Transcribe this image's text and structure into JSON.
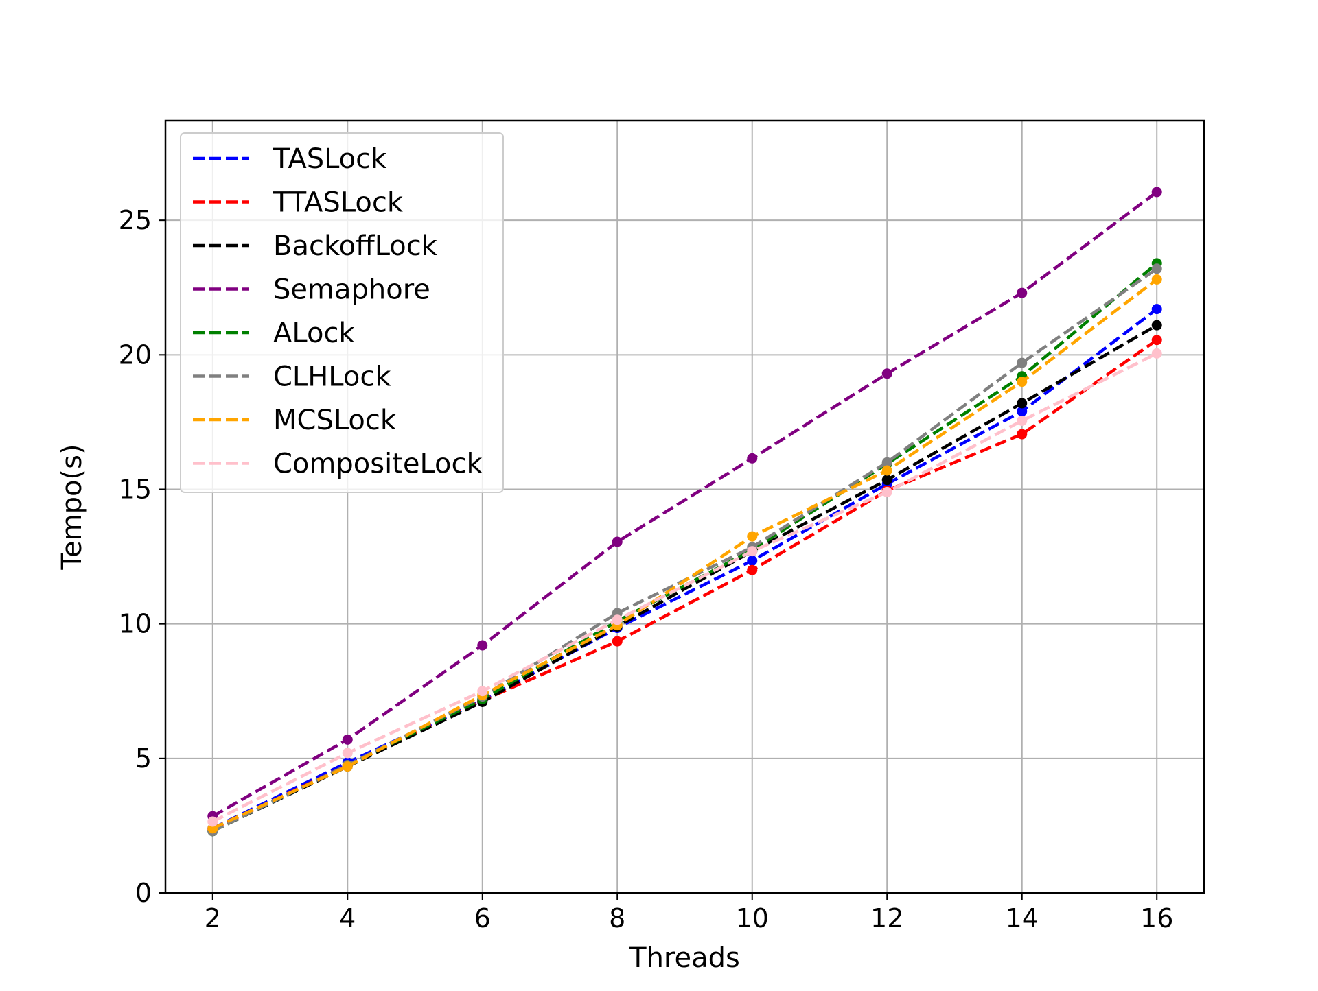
{
  "chart_data": {
    "type": "line",
    "title": "",
    "xlabel": "Threads",
    "ylabel": "Tempo(s)",
    "xlim": [
      1.3,
      16.7
    ],
    "ylim": [
      0,
      28.7
    ],
    "xticks": [
      2,
      4,
      6,
      8,
      10,
      12,
      14,
      16
    ],
    "yticks": [
      0,
      5,
      10,
      15,
      20,
      25
    ],
    "grid": true,
    "legend_position": "top-left",
    "line_style": "dashed",
    "marker": "circle",
    "x": [
      2,
      4,
      6,
      8,
      10,
      12,
      14,
      16
    ],
    "series": [
      {
        "name": "TASLock",
        "color": "#0000ff",
        "values": [
          2.4,
          4.85,
          7.15,
          9.85,
          12.35,
          15.2,
          17.9,
          21.7
        ]
      },
      {
        "name": "TTASLock",
        "color": "#ff0000",
        "values": [
          2.35,
          4.75,
          7.15,
          9.35,
          12.0,
          14.95,
          17.05,
          20.55
        ]
      },
      {
        "name": "BackoffLock",
        "color": "#000000",
        "values": [
          2.3,
          4.7,
          7.1,
          9.9,
          12.7,
          15.35,
          18.2,
          21.1
        ]
      },
      {
        "name": "Semaphore",
        "color": "#800080",
        "values": [
          2.85,
          5.7,
          9.2,
          13.05,
          16.15,
          19.3,
          22.3,
          26.05
        ]
      },
      {
        "name": "ALock",
        "color": "#008000",
        "values": [
          2.3,
          4.75,
          7.2,
          10.1,
          12.75,
          15.95,
          19.2,
          23.4
        ]
      },
      {
        "name": "CLHLock",
        "color": "#808080",
        "values": [
          2.3,
          4.75,
          7.3,
          10.4,
          12.85,
          16.0,
          19.7,
          23.2
        ]
      },
      {
        "name": "MCSLock",
        "color": "#ffa500",
        "values": [
          2.4,
          4.7,
          7.35,
          9.95,
          13.25,
          15.7,
          19.0,
          22.8
        ]
      },
      {
        "name": "CompositeLock",
        "color": "#ffc0cb",
        "values": [
          2.65,
          5.2,
          7.5,
          10.15,
          12.7,
          14.9,
          17.55,
          20.05
        ]
      }
    ]
  }
}
